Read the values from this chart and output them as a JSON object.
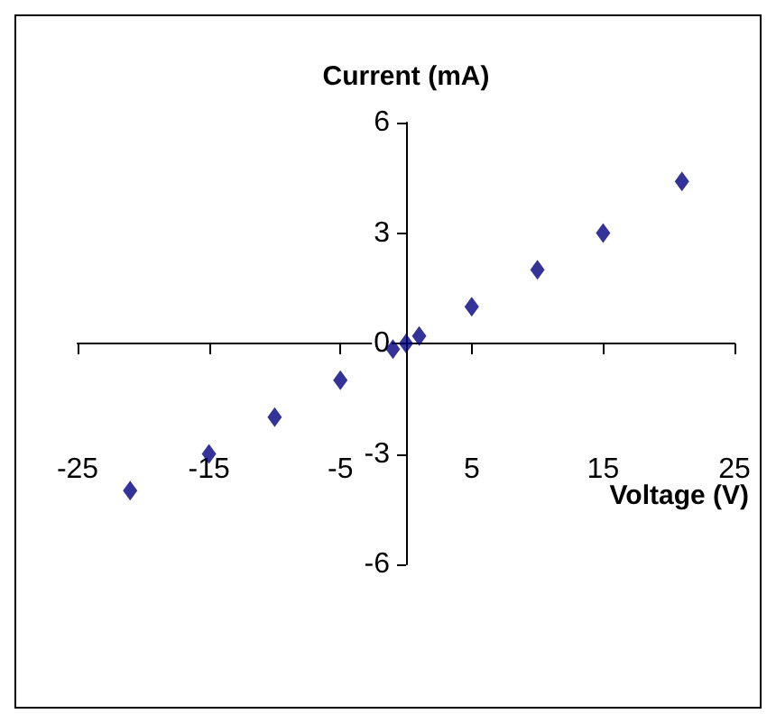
{
  "chart_data": {
    "type": "scatter",
    "xlabel": "Voltage (V)",
    "ylabel": "Current (mA)",
    "x": [
      -21,
      -15,
      -10,
      -5,
      -1,
      0,
      1,
      5,
      10,
      15,
      21
    ],
    "series": [
      {
        "color": "#000080",
        "values": [
          -4,
          -3,
          -2,
          -1,
          -0.15,
          0,
          0.2,
          1,
          2,
          3,
          4.4
        ]
      }
    ],
    "xlim": [
      -25,
      25
    ],
    "xticks": [
      -25,
      -15,
      -5,
      5,
      15,
      25
    ],
    "ylim": [
      -6,
      6
    ],
    "yticks": [
      -6,
      -3,
      0,
      3,
      6
    ],
    "marker": "diamond"
  }
}
